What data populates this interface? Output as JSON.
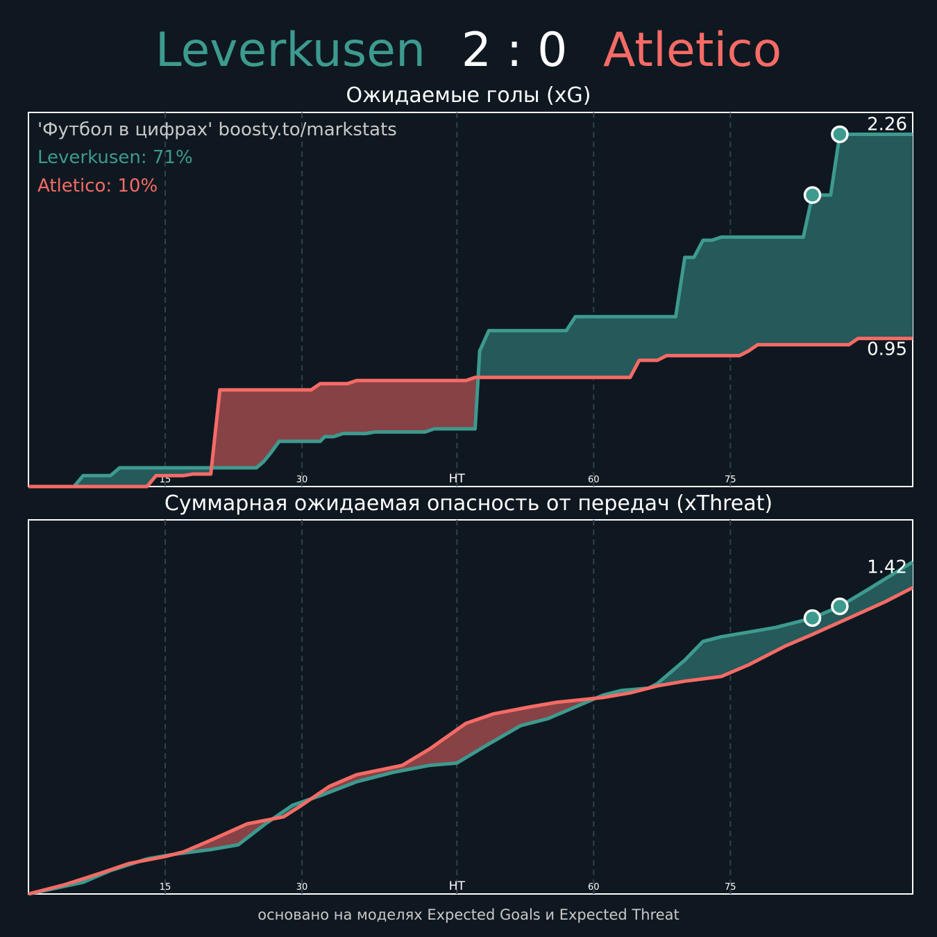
{
  "header": {
    "home_team": "Leverkusen",
    "score": "2 : 0",
    "away_team": "Atletico"
  },
  "colors": {
    "home": "#3d9a8f",
    "away": "#f66b66",
    "home_fill": "#25595a",
    "away_fill": "#874246",
    "background": "#0f1820"
  },
  "xg_panel": {
    "title": "Ожидаемые голы (xG)",
    "credit": "'Футбол в цифрах' boosty.to/markstats",
    "home_prob": "Leverkusen: 71%",
    "away_prob": "Atletico: 10%",
    "home_final_label": "2.26",
    "away_final_label": "0.95"
  },
  "xt_panel": {
    "title": "Суммарная ожидаемая опасность от передач (xThreat)",
    "final_label": "1.42"
  },
  "footer": "основано на моделях Expected Goals и Expected Threat",
  "chart_data": [
    {
      "type": "line",
      "title": "Ожидаемые голы (xG)",
      "x_ticks": [
        "15",
        "30",
        "HT",
        "60",
        "75"
      ],
      "xlim": [
        0,
        97
      ],
      "ylim": [
        0,
        2.4
      ],
      "step": true,
      "series": [
        {
          "name": "Leverkusen",
          "points": [
            [
              0,
              0
            ],
            [
              5,
              0
            ],
            [
              6,
              0.07
            ],
            [
              9,
              0.07
            ],
            [
              10,
              0.12
            ],
            [
              20,
              0.12
            ],
            [
              25,
              0.12
            ],
            [
              25.8,
              0.16
            ],
            [
              26.5,
              0.21
            ],
            [
              27.5,
              0.29
            ],
            [
              32,
              0.29
            ],
            [
              32.5,
              0.32
            ],
            [
              33.5,
              0.32
            ],
            [
              34.5,
              0.34
            ],
            [
              37,
              0.34
            ],
            [
              38,
              0.35
            ],
            [
              43.5,
              0.35
            ],
            [
              44.5,
              0.37
            ],
            [
              49,
              0.37
            ],
            [
              49.5,
              0.87
            ],
            [
              50.5,
              1.0
            ],
            [
              59,
              1.0
            ],
            [
              60,
              1.09
            ],
            [
              71,
              1.09
            ],
            [
              72,
              1.47
            ],
            [
              73,
              1.47
            ],
            [
              74,
              1.58
            ],
            [
              75,
              1.58
            ],
            [
              76,
              1.6
            ],
            [
              85,
              1.6
            ],
            [
              86,
              1.87
            ],
            [
              88,
              1.87
            ],
            [
              89,
              2.26
            ],
            [
              97,
              2.26
            ]
          ]
        },
        {
          "name": "Atletico",
          "points": [
            [
              0,
              0
            ],
            [
              13,
              0
            ],
            [
              14,
              0.07
            ],
            [
              17,
              0.07
            ],
            [
              18,
              0.08
            ],
            [
              20,
              0.08
            ],
            [
              21,
              0.62
            ],
            [
              31,
              0.62
            ],
            [
              32,
              0.66
            ],
            [
              35,
              0.66
            ],
            [
              36,
              0.68
            ],
            [
              48,
              0.68
            ],
            [
              49,
              0.7
            ],
            [
              66,
              0.7
            ],
            [
              67,
              0.81
            ],
            [
              69,
              0.81
            ],
            [
              70,
              0.84
            ],
            [
              78,
              0.84
            ],
            [
              79,
              0.87
            ],
            [
              80,
              0.91
            ],
            [
              90,
              0.91
            ],
            [
              91,
              0.95
            ],
            [
              97,
              0.95
            ]
          ]
        }
      ],
      "goals": [
        {
          "team": "Leverkusen",
          "minute": 86,
          "value": 1.87
        },
        {
          "team": "Leverkusen",
          "minute": 89,
          "value": 2.26
        }
      ]
    },
    {
      "type": "line",
      "title": "Суммарная ожидаемая опасность от передач (xThreat)",
      "x_ticks": [
        "15",
        "30",
        "HT",
        "60",
        "75"
      ],
      "xlim": [
        0,
        97
      ],
      "ylim": [
        0,
        1.6
      ],
      "series": [
        {
          "name": "Leverkusen",
          "points": [
            [
              0,
              0
            ],
            [
              6,
              0.05
            ],
            [
              9,
              0.1
            ],
            [
              13,
              0.15
            ],
            [
              16,
              0.17
            ],
            [
              20,
              0.19
            ],
            [
              23,
              0.21
            ],
            [
              26,
              0.3
            ],
            [
              29,
              0.38
            ],
            [
              32,
              0.42
            ],
            [
              36,
              0.48
            ],
            [
              40,
              0.52
            ],
            [
              44,
              0.55
            ],
            [
              47,
              0.56
            ],
            [
              50,
              0.63
            ],
            [
              54,
              0.72
            ],
            [
              57,
              0.75
            ],
            [
              60,
              0.8
            ],
            [
              63,
              0.85
            ],
            [
              65,
              0.87
            ],
            [
              68,
              0.88
            ],
            [
              69,
              0.9
            ],
            [
              72,
              1.0
            ],
            [
              74,
              1.08
            ],
            [
              76,
              1.1
            ],
            [
              79,
              1.12
            ],
            [
              82,
              1.14
            ],
            [
              86,
              1.18
            ],
            [
              89,
              1.23
            ],
            [
              92,
              1.3
            ],
            [
              97,
              1.42
            ]
          ]
        },
        {
          "name": "Atletico",
          "points": [
            [
              0,
              0
            ],
            [
              4,
              0.04
            ],
            [
              8,
              0.09
            ],
            [
              11,
              0.13
            ],
            [
              15,
              0.16
            ],
            [
              17,
              0.18
            ],
            [
              20,
              0.23
            ],
            [
              24,
              0.3
            ],
            [
              28,
              0.33
            ],
            [
              30,
              0.38
            ],
            [
              33,
              0.46
            ],
            [
              36,
              0.51
            ],
            [
              41,
              0.55
            ],
            [
              44,
              0.62
            ],
            [
              48,
              0.73
            ],
            [
              51,
              0.77
            ],
            [
              55,
              0.8
            ],
            [
              58,
              0.82
            ],
            [
              63,
              0.84
            ],
            [
              66,
              0.86
            ],
            [
              69,
              0.89
            ],
            [
              72,
              0.91
            ],
            [
              76,
              0.93
            ],
            [
              79,
              0.98
            ],
            [
              83,
              1.06
            ],
            [
              86,
              1.11
            ],
            [
              90,
              1.18
            ],
            [
              94,
              1.25
            ],
            [
              97,
              1.31
            ]
          ]
        }
      ],
      "goals": [
        {
          "team": "Leverkusen",
          "minute": 86,
          "value": 1.18
        },
        {
          "team": "Leverkusen",
          "minute": 89,
          "value": 1.23
        }
      ]
    }
  ]
}
